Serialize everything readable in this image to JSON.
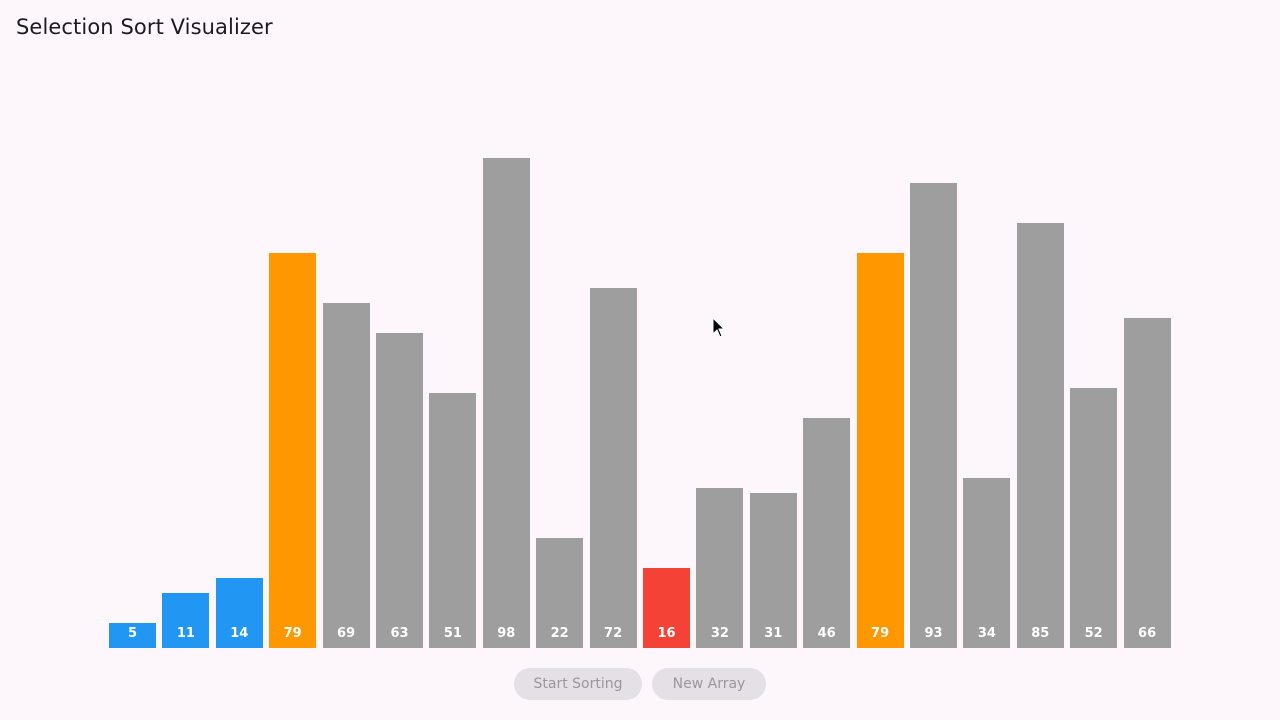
{
  "app": {
    "title": "Selection Sort Visualizer"
  },
  "controls": {
    "start_label": "Start Sorting",
    "new_array_label": "New Array"
  },
  "colors": {
    "sorted": "#2196f3",
    "comparing": "#ff9800",
    "current_min": "#f44336",
    "unsorted": "#9e9e9e"
  },
  "bars": [
    {
      "value": 5,
      "state": "sorted"
    },
    {
      "value": 11,
      "state": "sorted"
    },
    {
      "value": 14,
      "state": "sorted"
    },
    {
      "value": 79,
      "state": "comparing"
    },
    {
      "value": 69,
      "state": "unsorted"
    },
    {
      "value": 63,
      "state": "unsorted"
    },
    {
      "value": 51,
      "state": "unsorted"
    },
    {
      "value": 98,
      "state": "unsorted"
    },
    {
      "value": 22,
      "state": "unsorted"
    },
    {
      "value": 72,
      "state": "unsorted"
    },
    {
      "value": 16,
      "state": "current_min"
    },
    {
      "value": 32,
      "state": "unsorted"
    },
    {
      "value": 31,
      "state": "unsorted"
    },
    {
      "value": 46,
      "state": "unsorted"
    },
    {
      "value": 79,
      "state": "comparing"
    },
    {
      "value": 93,
      "state": "unsorted"
    },
    {
      "value": 34,
      "state": "unsorted"
    },
    {
      "value": 85,
      "state": "unsorted"
    },
    {
      "value": 52,
      "state": "unsorted"
    },
    {
      "value": 66,
      "state": "unsorted"
    }
  ]
}
